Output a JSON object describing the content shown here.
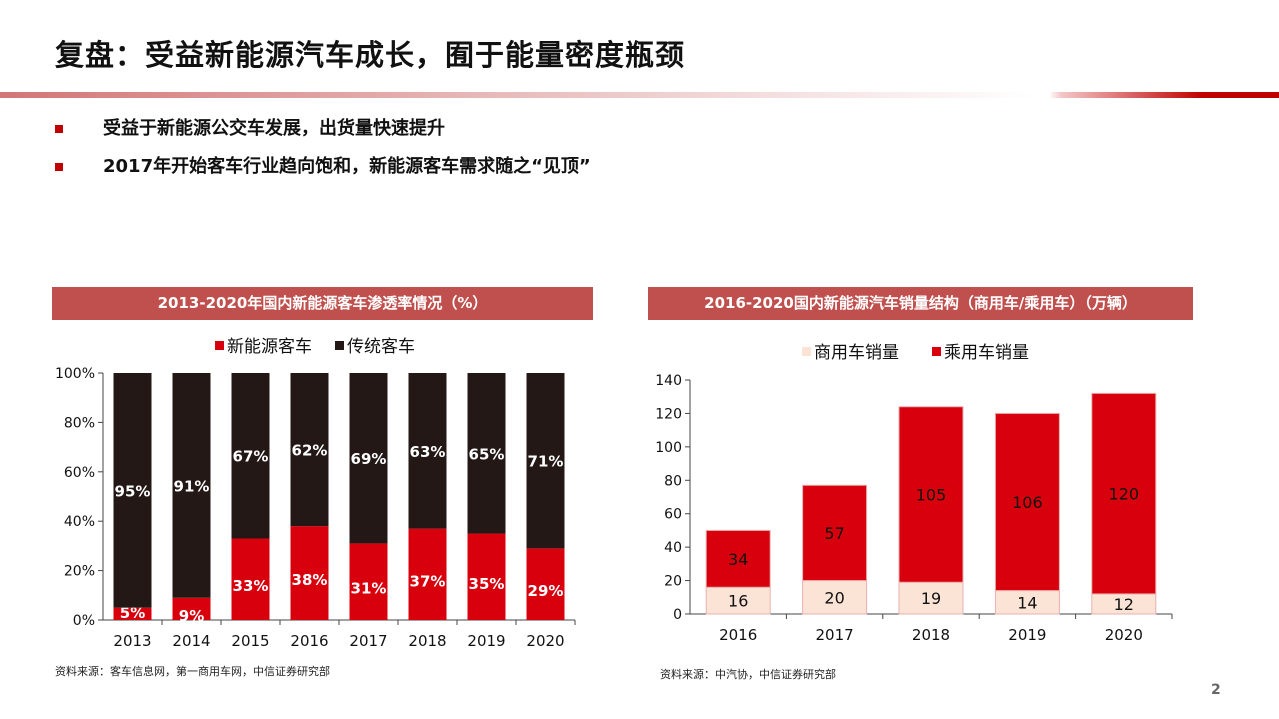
{
  "title": "复盘：受益新能源汽车成长，囿于能量密度瓶颈",
  "bullets": [
    "受益于新能源公交车发展，出货量快速提升",
    "2017年开始客车行业趋向饱和，新能源客车需求随之“见顶”"
  ],
  "page_number": "2",
  "colors": {
    "accent": "#c00000",
    "header": "#c0504d",
    "red": "#d9000d",
    "dark": "#231815",
    "light": "#fbe3d6"
  },
  "chart_data": [
    {
      "type": "bar",
      "stacked": true,
      "title": "2013-2020年国内新能源客车渗透率情况（%）",
      "categories": [
        "2013",
        "2014",
        "2015",
        "2016",
        "2017",
        "2018",
        "2019",
        "2020"
      ],
      "series": [
        {
          "name": "新能源客车",
          "color": "#d9000d",
          "values": [
            5,
            9,
            33,
            38,
            31,
            37,
            35,
            29
          ]
        },
        {
          "name": "传统客车",
          "color": "#231815",
          "values": [
            95,
            91,
            67,
            62,
            69,
            63,
            65,
            71
          ]
        }
      ],
      "yticks": [
        "0%",
        "20%",
        "40%",
        "60%",
        "80%",
        "100%"
      ],
      "ylim": [
        0,
        100
      ],
      "legend": "top",
      "source": "资料来源：客车信息网，第一商用车网，中信证券研究部"
    },
    {
      "type": "bar",
      "stacked": true,
      "title": "2016-2020国内新能源汽车销量结构（商用车/乘用车）（万辆）",
      "categories": [
        "2016",
        "2017",
        "2018",
        "2019",
        "2020"
      ],
      "series": [
        {
          "name": "商用车销量",
          "color": "#fbe3d6",
          "values": [
            16,
            20,
            19,
            14,
            12
          ]
        },
        {
          "name": "乘用车销量",
          "color": "#d9000d",
          "values": [
            34,
            57,
            105,
            106,
            120
          ]
        }
      ],
      "yticks": [
        "0",
        "20",
        "40",
        "60",
        "80",
        "100",
        "120",
        "140"
      ],
      "ylim": [
        0,
        140
      ],
      "legend": "top",
      "source": "资料来源：中汽协，中信证券研究部"
    }
  ]
}
